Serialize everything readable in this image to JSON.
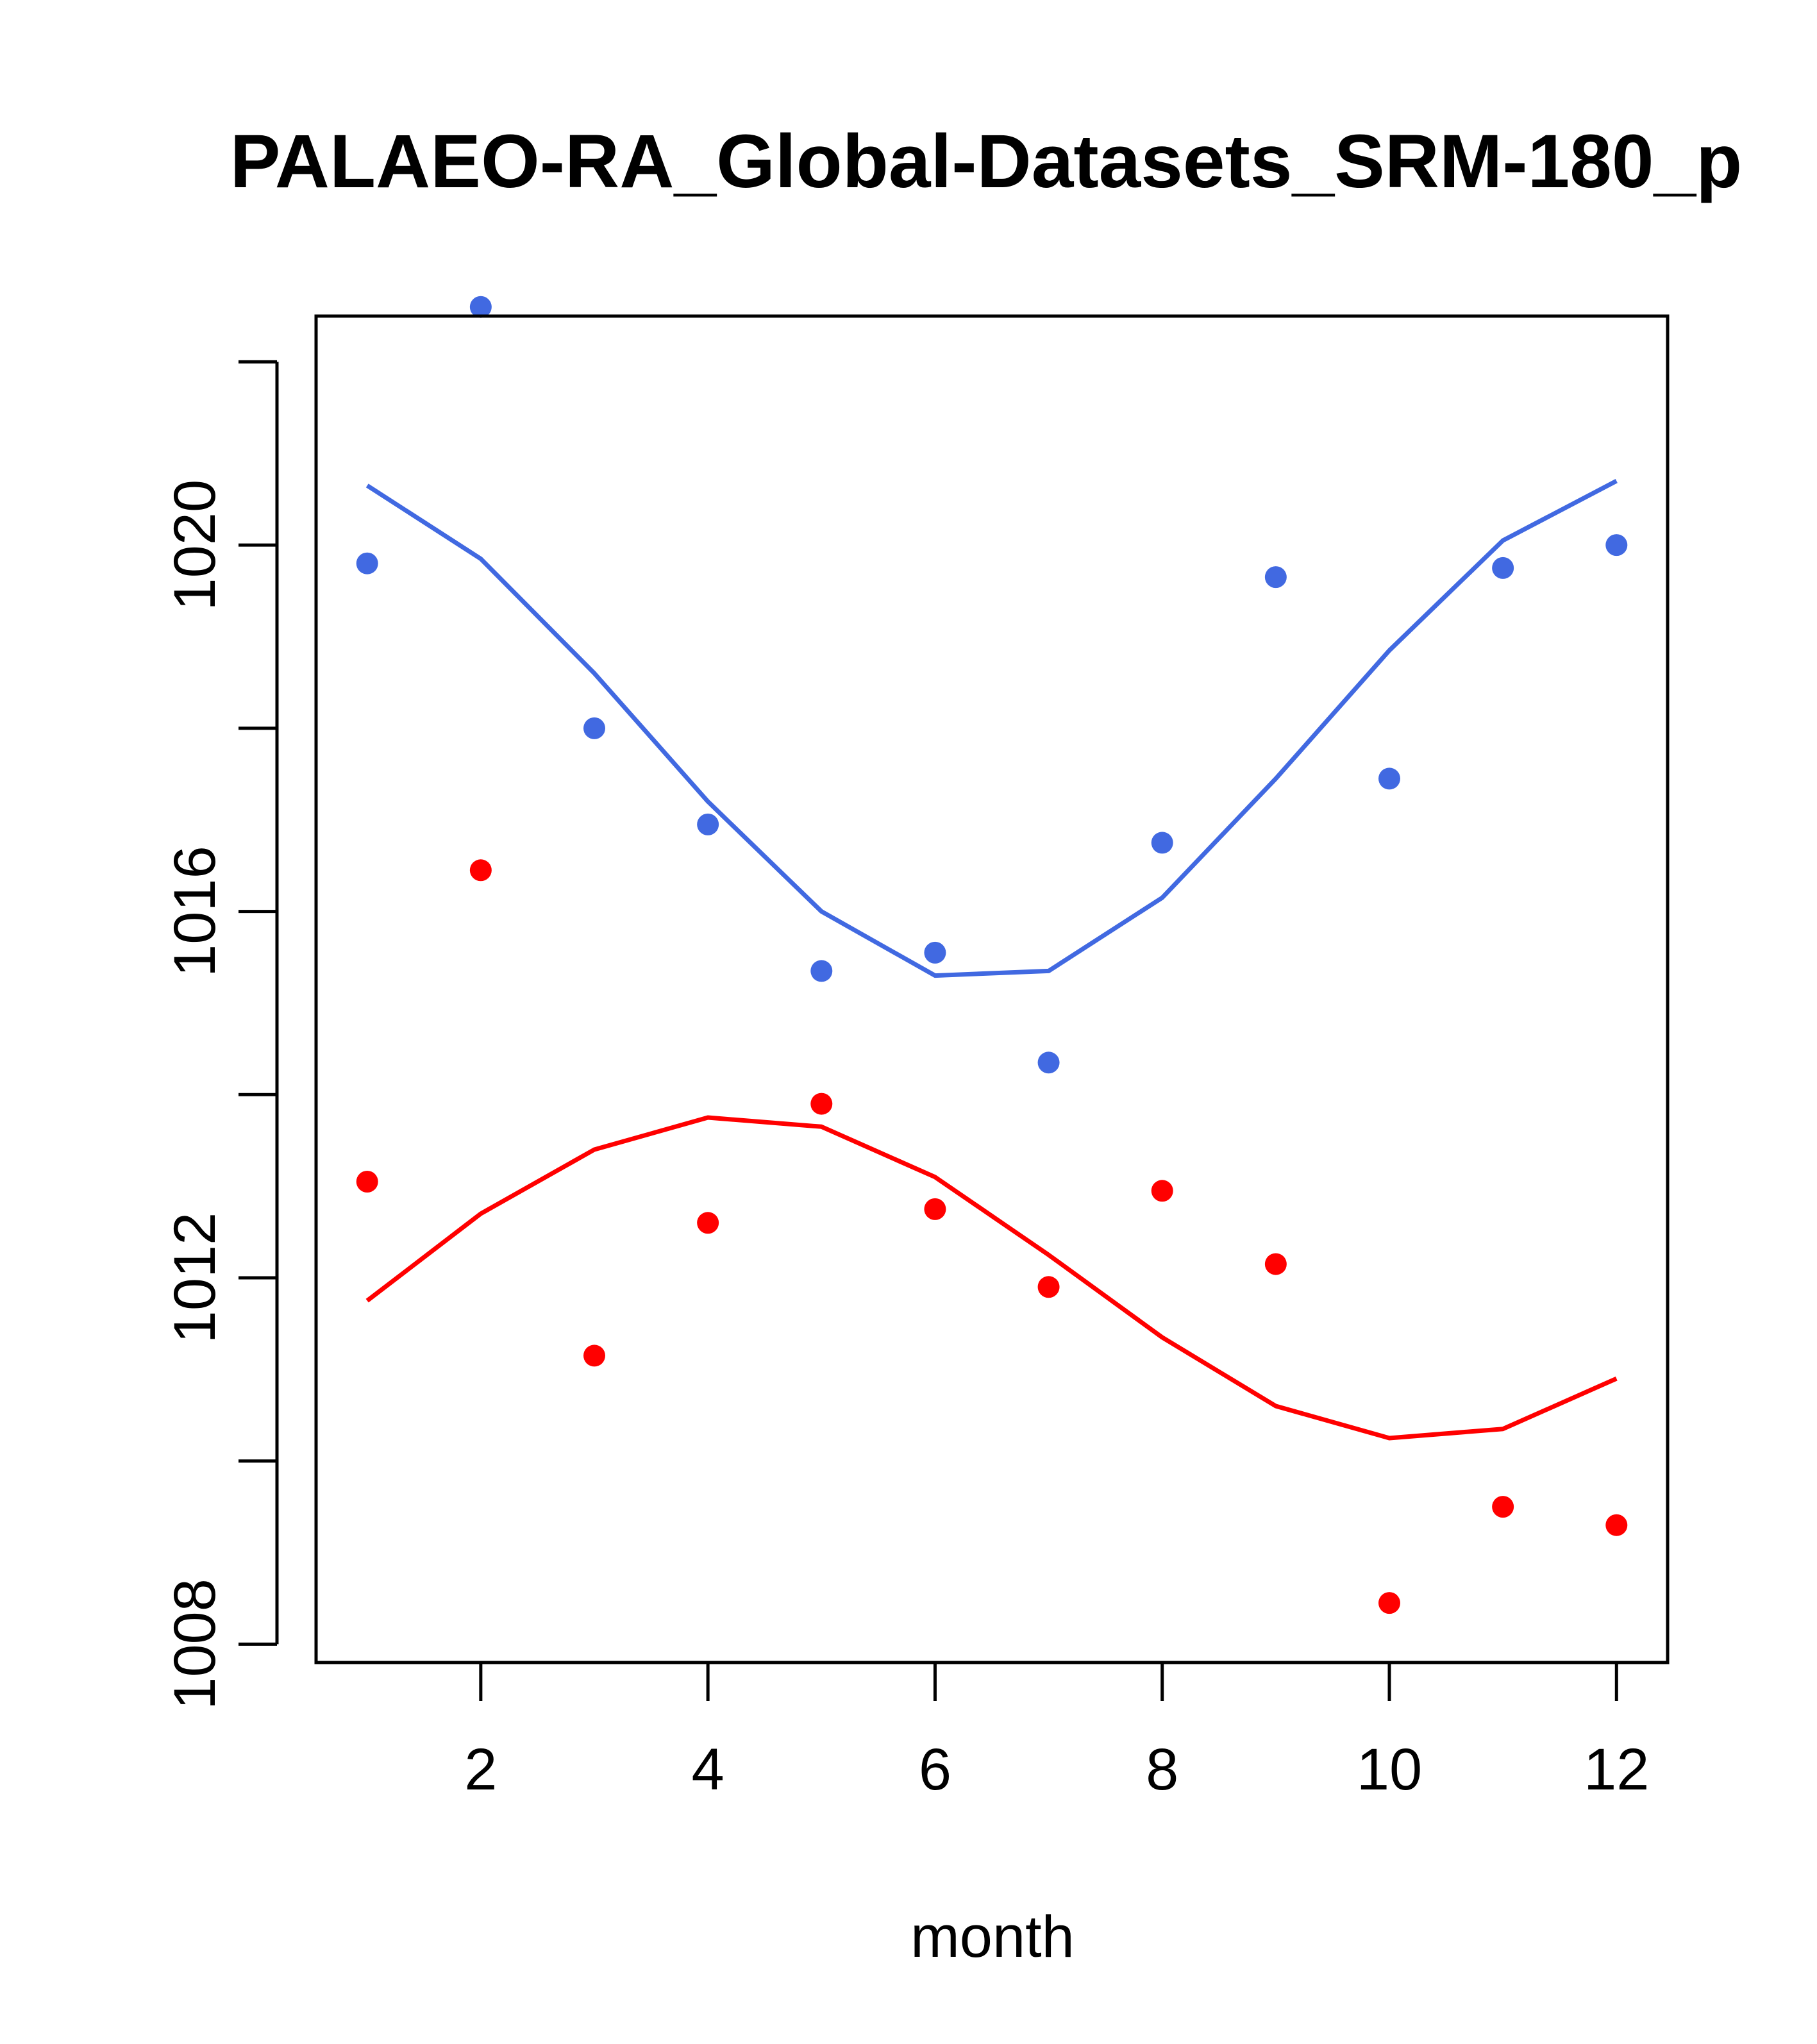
{
  "chart_data": {
    "type": "line",
    "title": "PALAEO-RA_Global-Datasets_SRM-180_p",
    "xlabel": "month",
    "ylabel": "",
    "xlim": [
      0.55,
      12.45
    ],
    "ylim": [
      1007.8,
      1022.5
    ],
    "x_ticks": [
      2,
      4,
      6,
      8,
      10,
      12
    ],
    "x_tick_labels": [
      "2",
      "4",
      "6",
      "8",
      "10",
      "12"
    ],
    "y_ticks": [
      1008,
      1010,
      1012,
      1014,
      1016,
      1018,
      1020,
      1022
    ],
    "y_tick_labels": [
      "1008",
      "",
      "1012",
      "",
      "1016",
      "",
      "1020",
      ""
    ],
    "x": [
      1,
      2,
      3,
      4,
      5,
      6,
      7,
      8,
      9,
      10,
      11,
      12
    ],
    "series": [
      {
        "name": "blue",
        "color": "#4169E1",
        "points": [
          19.8,
          22.6,
          18.0,
          16.95,
          15.35,
          15.55,
          14.35,
          16.75,
          19.65,
          17.45,
          19.75,
          20.0
        ],
        "line": [
          20.65,
          19.85,
          18.6,
          17.2,
          16.0,
          15.3,
          15.35,
          16.15,
          17.45,
          18.85,
          20.05,
          20.7
        ]
      },
      {
        "name": "red",
        "color": "#FF0000",
        "points": [
          13.05,
          16.45,
          11.15,
          12.6,
          13.9,
          12.75,
          11.9,
          12.95,
          12.15,
          8.45,
          9.5,
          9.3
        ],
        "line": [
          11.75,
          12.7,
          13.4,
          13.75,
          13.65,
          13.1,
          12.25,
          11.35,
          10.6,
          10.25,
          10.35,
          10.9
        ]
      }
    ],
    "y_offset": 1000,
    "grid": false,
    "legend": "none"
  }
}
